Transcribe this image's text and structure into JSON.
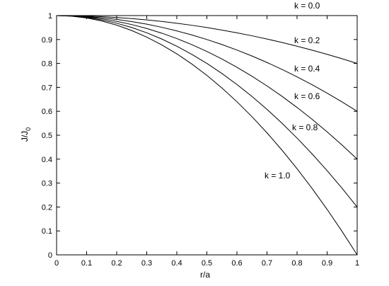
{
  "chart_data": {
    "type": "line",
    "title": "",
    "xlabel": "r/a",
    "ylabel": "J/J",
    "ylabel_subscript": "0",
    "xlim": [
      0,
      1
    ],
    "ylim": [
      0,
      1
    ],
    "x_ticks": [
      "0",
      "0.1",
      "0.2",
      "0.3",
      "0.4",
      "0.5",
      "0.6",
      "0.7",
      "0.8",
      "0.9",
      "1"
    ],
    "y_ticks": [
      "0",
      "0.1",
      "0.2",
      "0.3",
      "0.4",
      "0.5",
      "0.6",
      "0.7",
      "0.8",
      "0.9",
      "1"
    ],
    "grid": false,
    "legend": "none",
    "series_color": "#000000",
    "x": [
      0,
      0.05,
      0.1,
      0.15,
      0.2,
      0.25,
      0.3,
      0.35,
      0.4,
      0.45,
      0.5,
      0.55,
      0.6,
      0.65,
      0.7,
      0.75,
      0.8,
      0.85,
      0.9,
      0.95,
      1.0
    ],
    "series": [
      {
        "label": "k = 0.0",
        "values": [
          1,
          1,
          1,
          1,
          1,
          1,
          1,
          1,
          1,
          1,
          1,
          1,
          1,
          1,
          1,
          1,
          1,
          1,
          1,
          1,
          1
        ]
      },
      {
        "label": "k = 0.2",
        "values": [
          1,
          0.9995,
          0.998,
          0.9955,
          0.992,
          0.9875,
          0.982,
          0.9755,
          0.968,
          0.9595,
          0.95,
          0.9395,
          0.928,
          0.9155,
          0.902,
          0.8875,
          0.872,
          0.8555,
          0.838,
          0.8195,
          0.8
        ]
      },
      {
        "label": "k = 0.4",
        "values": [
          1,
          0.999,
          0.996,
          0.991,
          0.984,
          0.975,
          0.964,
          0.951,
          0.936,
          0.919,
          0.9,
          0.879,
          0.856,
          0.831,
          0.804,
          0.775,
          0.744,
          0.711,
          0.676,
          0.639,
          0.6
        ]
      },
      {
        "label": "k = 0.6",
        "values": [
          1,
          0.9985,
          0.994,
          0.9865,
          0.976,
          0.9625,
          0.946,
          0.9265,
          0.904,
          0.8785,
          0.85,
          0.8185,
          0.784,
          0.7465,
          0.706,
          0.6625,
          0.616,
          0.5665,
          0.514,
          0.4585,
          0.4
        ]
      },
      {
        "label": "k = 0.8",
        "values": [
          1,
          0.998,
          0.992,
          0.982,
          0.968,
          0.95,
          0.928,
          0.902,
          0.872,
          0.838,
          0.8,
          0.758,
          0.712,
          0.662,
          0.608,
          0.55,
          0.488,
          0.422,
          0.352,
          0.278,
          0.2
        ]
      },
      {
        "label": "k = 1.0",
        "values": [
          1,
          0.9975,
          0.99,
          0.9775,
          0.96,
          0.9375,
          0.91,
          0.8775,
          0.84,
          0.7975,
          0.75,
          0.6975,
          0.64,
          0.5775,
          0.51,
          0.4375,
          0.36,
          0.2775,
          0.19,
          0.0975,
          0
        ]
      }
    ]
  }
}
